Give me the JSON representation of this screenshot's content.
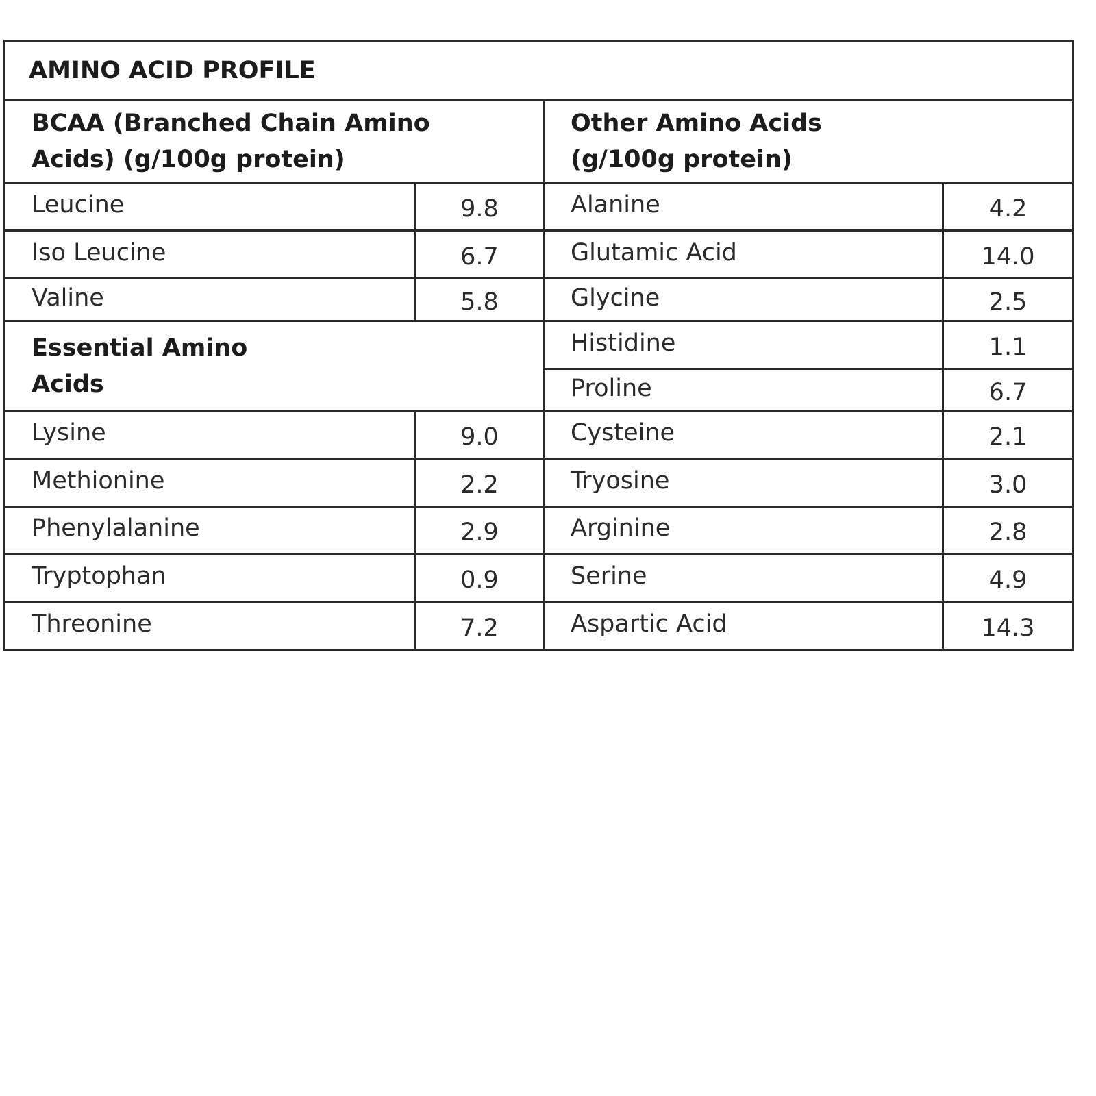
{
  "title": "AMINO ACID PROFILE",
  "bcaa_header": "BCAA (Branched Chain Amino Acids) (g/100g protein)",
  "other_header": "Other Amino Acids (g/100g protein)",
  "essential_header": "Essential Amino Acids",
  "bcaa": [
    {
      "name": "Leucine",
      "value": "9.8"
    },
    {
      "name": "Iso Leucine",
      "value": "6.7"
    },
    {
      "name": "Valine",
      "value": "5.8"
    }
  ],
  "essential": [
    {
      "name": "Lysine",
      "value": "9.0"
    },
    {
      "name": "Methionine",
      "value": "2.2"
    },
    {
      "name": "Phenylalanine",
      "value": "2.9"
    },
    {
      "name": "Tryptophan",
      "value": "0.9"
    },
    {
      "name": "Threonine",
      "value": "7.2"
    }
  ],
  "other": [
    {
      "name": "Alanine",
      "value": "4.2"
    },
    {
      "name": "Glutamic Acid",
      "value": "14.0"
    },
    {
      "name": "Glycine",
      "value": "2.5"
    },
    {
      "name": "Histidine",
      "value": "1.1"
    },
    {
      "name": "Proline",
      "value": "6.7"
    },
    {
      "name": "Cysteine",
      "value": "2.1"
    },
    {
      "name": "Tryosine",
      "value": "3.0"
    },
    {
      "name": "Arginine",
      "value": "2.8"
    },
    {
      "name": "Serine",
      "value": "4.9"
    },
    {
      "name": "Aspartic Acid",
      "value": "14.3"
    }
  ]
}
